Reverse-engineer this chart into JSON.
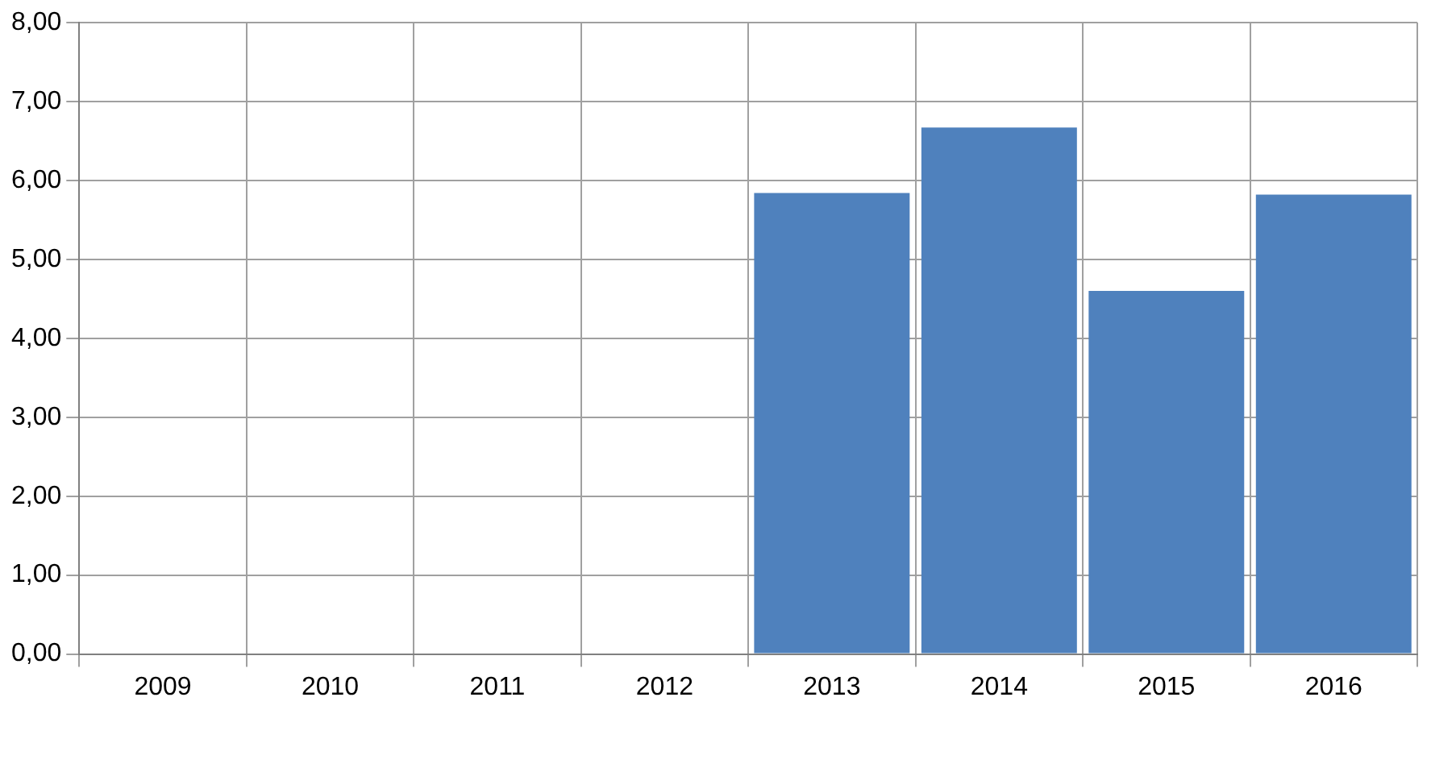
{
  "chart_data": {
    "type": "bar",
    "categories": [
      "2009",
      "2010",
      "2011",
      "2012",
      "2013",
      "2014",
      "2015",
      "2016"
    ],
    "values": [
      null,
      null,
      null,
      null,
      5.84,
      6.67,
      4.6,
      5.82
    ],
    "color": "#4f81bd",
    "ylim": [
      0,
      8
    ],
    "yticks": [
      {
        "value": 0,
        "label": "0,00"
      },
      {
        "value": 1,
        "label": "1,00"
      },
      {
        "value": 2,
        "label": "2,00"
      },
      {
        "value": 3,
        "label": "3,00"
      },
      {
        "value": 4,
        "label": "4,00"
      },
      {
        "value": 5,
        "label": "5,00"
      },
      {
        "value": 6,
        "label": "6,00"
      },
      {
        "value": 7,
        "label": "7,00"
      },
      {
        "value": 8,
        "label": "8,00"
      }
    ],
    "grid": true,
    "legend": false
  }
}
